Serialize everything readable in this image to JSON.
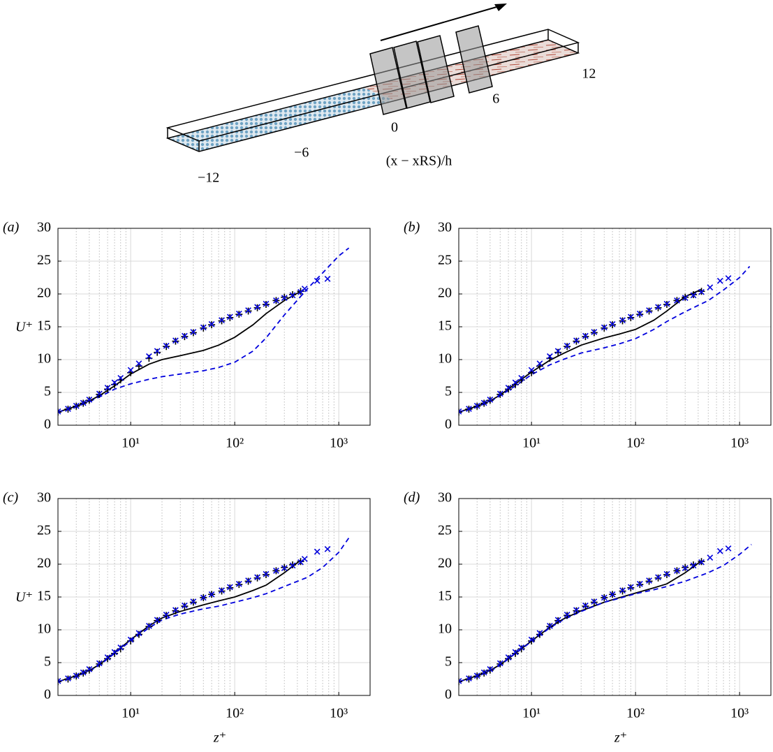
{
  "schematic": {
    "ticks": [
      {
        "value": -12,
        "label": "−12"
      },
      {
        "value": -6,
        "label": "−6"
      },
      {
        "value": 0,
        "label": "0"
      },
      {
        "value": 6,
        "label": "6"
      },
      {
        "value": 12,
        "label": "12"
      }
    ],
    "axis_label": "(x − xRS)/h"
  },
  "chart_data": [
    {
      "type": "line",
      "panel_label": "(a)",
      "ylabel": "U⁺",
      "xscale": "log",
      "xlim": [
        2,
        2000
      ],
      "ylim": [
        0,
        30
      ],
      "yticks": [
        0,
        5,
        10,
        15,
        20,
        25,
        30
      ],
      "xticks": [
        {
          "value": 10,
          "label": "10¹"
        },
        {
          "value": 100,
          "label": "10²"
        },
        {
          "value": 1000,
          "label": "10³"
        }
      ],
      "xminorticks": [
        2,
        3,
        4,
        5,
        6,
        7,
        8,
        9,
        20,
        30,
        40,
        50,
        60,
        70,
        80,
        90,
        200,
        300,
        400,
        500,
        600,
        700,
        800,
        900
      ],
      "grid": true,
      "series": [
        {
          "color": "#000000",
          "style": "solid",
          "x": [
            2,
            3,
            4,
            5,
            7,
            10,
            15,
            20,
            30,
            50,
            70,
            100,
            150,
            200,
            300,
            430
          ],
          "values": [
            2.0,
            2.9,
            3.7,
            4.5,
            6.0,
            7.8,
            9.3,
            10.0,
            10.6,
            11.4,
            12.2,
            13.4,
            15.3,
            17.0,
            19.0,
            20.4
          ]
        },
        {
          "color": "#0000dd",
          "style": "dashed",
          "x": [
            2,
            3,
            4,
            5,
            7,
            10,
            15,
            20,
            30,
            50,
            70,
            100,
            150,
            200,
            300,
            500,
            700,
            1000,
            1250
          ],
          "values": [
            2.0,
            2.8,
            3.6,
            4.3,
            5.5,
            6.3,
            7.0,
            7.4,
            7.8,
            8.3,
            8.8,
            9.6,
            11.3,
            13.3,
            16.8,
            20.8,
            23.2,
            25.8,
            27.0
          ]
        },
        {
          "color": "#000000",
          "style": "plus",
          "x": [
            2,
            2.5,
            3,
            3.5,
            4,
            5,
            6,
            7,
            8,
            10,
            12,
            15,
            18,
            22,
            27,
            33,
            40,
            50,
            60,
            75,
            90,
            110,
            135,
            165,
            200,
            250,
            300,
            360,
            430
          ],
          "values": [
            2.0,
            2.45,
            2.9,
            3.35,
            3.8,
            4.7,
            5.5,
            6.2,
            6.9,
            8.0,
            9.0,
            10.2,
            11.1,
            12.0,
            12.8,
            13.5,
            14.1,
            14.8,
            15.3,
            15.9,
            16.4,
            16.9,
            17.4,
            17.9,
            18.4,
            19.0,
            19.5,
            19.9,
            20.4
          ]
        },
        {
          "color": "#0000dd",
          "style": "cross",
          "x": [
            2,
            2.5,
            3,
            3.5,
            4,
            5,
            6,
            7,
            8,
            10,
            12,
            15,
            18,
            22,
            27,
            33,
            40,
            50,
            60,
            75,
            90,
            110,
            135,
            165,
            200,
            250,
            300,
            360,
            430,
            470,
            620,
            780
          ],
          "values": [
            2.1,
            2.5,
            2.95,
            3.4,
            3.9,
            4.8,
            5.7,
            6.5,
            7.2,
            8.4,
            9.4,
            10.5,
            11.3,
            12.1,
            12.9,
            13.6,
            14.2,
            14.9,
            15.4,
            16.0,
            16.5,
            17.0,
            17.5,
            18.0,
            18.5,
            19.0,
            19.4,
            19.8,
            20.3,
            20.8,
            22.0,
            22.3
          ]
        }
      ]
    },
    {
      "type": "line",
      "panel_label": "(b)",
      "xscale": "log",
      "xlim": [
        2,
        2000
      ],
      "ylim": [
        0,
        30
      ],
      "yticks": [
        0,
        5,
        10,
        15,
        20,
        25,
        30
      ],
      "xticks": [
        {
          "value": 10,
          "label": "10¹"
        },
        {
          "value": 100,
          "label": "10²"
        },
        {
          "value": 1000,
          "label": "10³"
        }
      ],
      "xminorticks": [
        2,
        3,
        4,
        5,
        6,
        7,
        8,
        9,
        20,
        30,
        40,
        50,
        60,
        70,
        80,
        90,
        200,
        300,
        400,
        500,
        600,
        700,
        800,
        900
      ],
      "grid": true,
      "series": [
        {
          "color": "#000000",
          "style": "solid",
          "x": [
            2,
            3,
            4,
            5,
            7,
            10,
            15,
            20,
            30,
            50,
            70,
            100,
            150,
            200,
            300,
            430
          ],
          "values": [
            2.0,
            2.9,
            3.7,
            4.6,
            6.3,
            8.1,
            9.9,
            10.9,
            12.2,
            13.3,
            13.9,
            14.6,
            16.0,
            17.4,
            19.6,
            20.7
          ]
        },
        {
          "color": "#0000dd",
          "style": "dashed",
          "x": [
            2,
            3,
            4,
            5,
            7,
            10,
            15,
            20,
            30,
            50,
            70,
            100,
            150,
            200,
            300,
            500,
            700,
            1000,
            1250
          ],
          "values": [
            2.0,
            2.8,
            3.6,
            4.5,
            6.0,
            7.7,
            9.2,
            10.0,
            11.0,
            11.8,
            12.4,
            13.2,
            14.6,
            15.8,
            17.3,
            19.0,
            20.6,
            22.5,
            24.2
          ]
        },
        {
          "color": "#000000",
          "style": "plus",
          "x": [
            2,
            2.5,
            3,
            3.5,
            4,
            5,
            6,
            7,
            8,
            10,
            12,
            15,
            18,
            22,
            27,
            33,
            40,
            50,
            60,
            75,
            90,
            110,
            135,
            165,
            200,
            250,
            300,
            360,
            430
          ],
          "values": [
            2.0,
            2.45,
            2.9,
            3.35,
            3.8,
            4.7,
            5.5,
            6.2,
            6.9,
            8.0,
            9.0,
            10.2,
            11.1,
            12.0,
            12.8,
            13.5,
            14.1,
            14.8,
            15.3,
            15.9,
            16.4,
            16.9,
            17.4,
            17.9,
            18.4,
            19.0,
            19.5,
            19.9,
            20.4
          ]
        },
        {
          "color": "#0000dd",
          "style": "cross",
          "x": [
            2,
            2.5,
            3,
            3.5,
            4,
            5,
            6,
            7,
            8,
            10,
            12,
            15,
            18,
            22,
            27,
            33,
            40,
            50,
            60,
            75,
            90,
            110,
            135,
            165,
            200,
            250,
            300,
            360,
            430,
            520,
            650,
            780
          ],
          "values": [
            2.1,
            2.5,
            2.95,
            3.4,
            3.9,
            4.8,
            5.7,
            6.5,
            7.2,
            8.4,
            9.4,
            10.5,
            11.3,
            12.1,
            12.9,
            13.6,
            14.2,
            14.9,
            15.4,
            16.0,
            16.5,
            17.0,
            17.5,
            18.0,
            18.5,
            19.0,
            19.4,
            19.8,
            20.3,
            21.0,
            22.0,
            22.4
          ]
        }
      ]
    },
    {
      "type": "line",
      "panel_label": "(c)",
      "ylabel": "U⁺",
      "xlabel": "z⁺",
      "xscale": "log",
      "xlim": [
        2,
        2000
      ],
      "ylim": [
        0,
        30
      ],
      "yticks": [
        0,
        5,
        10,
        15,
        20,
        25,
        30
      ],
      "xticks": [
        {
          "value": 10,
          "label": "10¹"
        },
        {
          "value": 100,
          "label": "10²"
        },
        {
          "value": 1000,
          "label": "10³"
        }
      ],
      "xminorticks": [
        2,
        3,
        4,
        5,
        6,
        7,
        8,
        9,
        20,
        30,
        40,
        50,
        60,
        70,
        80,
        90,
        200,
        300,
        400,
        500,
        600,
        700,
        800,
        900
      ],
      "grid": true,
      "series": [
        {
          "color": "#000000",
          "style": "solid",
          "x": [
            2,
            3,
            4,
            5,
            7,
            10,
            15,
            20,
            30,
            50,
            70,
            100,
            150,
            200,
            300,
            430
          ],
          "values": [
            2.1,
            3.0,
            3.8,
            4.7,
            6.5,
            8.5,
            10.6,
            11.8,
            12.8,
            13.8,
            14.4,
            15.0,
            16.0,
            16.8,
            18.7,
            20.6
          ]
        },
        {
          "color": "#0000dd",
          "style": "dashed",
          "x": [
            2,
            3,
            4,
            5,
            7,
            10,
            15,
            20,
            30,
            50,
            70,
            100,
            150,
            200,
            300,
            500,
            700,
            1000,
            1250
          ],
          "values": [
            2.1,
            2.9,
            3.7,
            4.6,
            6.4,
            8.3,
            10.3,
            11.5,
            12.4,
            13.2,
            13.6,
            14.2,
            14.9,
            15.5,
            16.6,
            18.0,
            19.5,
            21.8,
            24.0
          ]
        },
        {
          "color": "#000000",
          "style": "plus",
          "x": [
            2,
            2.5,
            3,
            3.5,
            4,
            5,
            6,
            7,
            8,
            10,
            12,
            15,
            18,
            22,
            27,
            33,
            40,
            50,
            60,
            75,
            90,
            110,
            135,
            165,
            200,
            250,
            300,
            360,
            430
          ],
          "values": [
            2.1,
            2.5,
            2.95,
            3.4,
            3.85,
            4.8,
            5.6,
            6.4,
            7.1,
            8.3,
            9.3,
            10.5,
            11.4,
            12.2,
            12.9,
            13.6,
            14.2,
            14.9,
            15.4,
            15.9,
            16.4,
            16.9,
            17.4,
            17.9,
            18.4,
            19.0,
            19.5,
            19.9,
            20.4
          ]
        },
        {
          "color": "#0000dd",
          "style": "cross",
          "x": [
            2,
            2.5,
            3,
            3.5,
            4,
            5,
            6,
            7,
            8,
            10,
            12,
            15,
            18,
            22,
            27,
            33,
            40,
            50,
            60,
            75,
            90,
            110,
            135,
            165,
            200,
            250,
            300,
            360,
            430,
            470,
            620,
            780
          ],
          "values": [
            2.2,
            2.6,
            3.0,
            3.5,
            4.0,
            4.9,
            5.8,
            6.6,
            7.3,
            8.5,
            9.5,
            10.6,
            11.5,
            12.3,
            13.0,
            13.7,
            14.3,
            14.9,
            15.4,
            16.0,
            16.5,
            17.0,
            17.5,
            18.0,
            18.5,
            19.0,
            19.4,
            19.8,
            20.3,
            20.8,
            21.9,
            22.3
          ]
        }
      ]
    },
    {
      "type": "line",
      "panel_label": "(d)",
      "xlabel": "z⁺",
      "xscale": "log",
      "xlim": [
        2,
        2000
      ],
      "ylim": [
        0,
        30
      ],
      "yticks": [
        0,
        5,
        10,
        15,
        20,
        25,
        30
      ],
      "xticks": [
        {
          "value": 10,
          "label": "10¹"
        },
        {
          "value": 100,
          "label": "10²"
        },
        {
          "value": 1000,
          "label": "10³"
        }
      ],
      "xminorticks": [
        2,
        3,
        4,
        5,
        6,
        7,
        8,
        9,
        20,
        30,
        40,
        50,
        60,
        70,
        80,
        90,
        200,
        300,
        400,
        500,
        600,
        700,
        800,
        900
      ],
      "grid": true,
      "series": [
        {
          "color": "#000000",
          "style": "solid",
          "x": [
            2,
            3,
            4,
            5,
            7,
            10,
            15,
            20,
            30,
            50,
            70,
            100,
            150,
            200,
            300,
            430
          ],
          "values": [
            2.1,
            3.0,
            3.8,
            4.7,
            6.4,
            8.3,
            10.4,
            11.6,
            12.9,
            14.2,
            14.9,
            15.6,
            16.4,
            17.0,
            18.7,
            20.5
          ]
        },
        {
          "color": "#0000dd",
          "style": "dashed",
          "x": [
            2,
            3,
            4,
            5,
            7,
            10,
            15,
            20,
            30,
            50,
            70,
            100,
            150,
            200,
            300,
            500,
            700,
            1000,
            1300
          ],
          "values": [
            2.1,
            2.9,
            3.7,
            4.6,
            6.4,
            8.2,
            10.3,
            11.5,
            12.8,
            14.2,
            14.8,
            15.5,
            16.1,
            16.6,
            17.4,
            18.7,
            19.8,
            21.5,
            23.0
          ]
        },
        {
          "color": "#000000",
          "style": "plus",
          "x": [
            2,
            2.5,
            3,
            3.5,
            4,
            5,
            6,
            7,
            8,
            10,
            12,
            15,
            18,
            22,
            27,
            33,
            40,
            50,
            60,
            75,
            90,
            110,
            135,
            165,
            200,
            250,
            300,
            360,
            430
          ],
          "values": [
            2.1,
            2.5,
            2.95,
            3.4,
            3.85,
            4.8,
            5.6,
            6.4,
            7.1,
            8.3,
            9.3,
            10.5,
            11.4,
            12.2,
            12.9,
            13.6,
            14.2,
            14.9,
            15.4,
            15.9,
            16.4,
            16.9,
            17.4,
            17.9,
            18.4,
            19.0,
            19.5,
            19.9,
            20.4
          ]
        },
        {
          "color": "#0000dd",
          "style": "cross",
          "x": [
            2,
            2.5,
            3,
            3.5,
            4,
            5,
            6,
            7,
            8,
            10,
            12,
            15,
            18,
            22,
            27,
            33,
            40,
            50,
            60,
            75,
            90,
            110,
            135,
            165,
            200,
            250,
            300,
            360,
            430,
            520,
            650,
            780
          ],
          "values": [
            2.2,
            2.6,
            3.0,
            3.5,
            4.0,
            4.9,
            5.8,
            6.6,
            7.3,
            8.5,
            9.5,
            10.6,
            11.5,
            12.3,
            13.0,
            13.7,
            14.3,
            14.9,
            15.4,
            16.0,
            16.5,
            17.0,
            17.5,
            18.0,
            18.5,
            19.0,
            19.4,
            19.8,
            20.3,
            21.0,
            22.0,
            22.4
          ]
        }
      ]
    }
  ]
}
